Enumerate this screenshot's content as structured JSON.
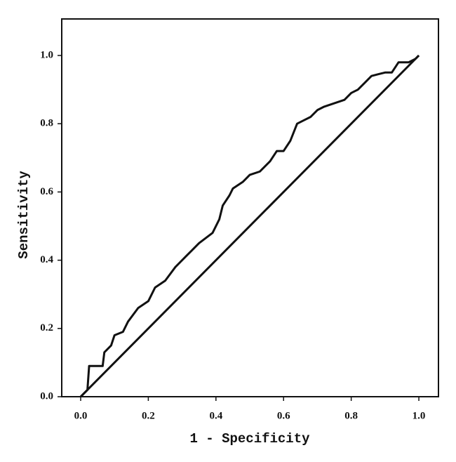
{
  "chart_data": {
    "type": "line",
    "xlabel": "1 - Specificity",
    "ylabel": "Sensitivity",
    "xlim": [
      -0.056,
      1.058
    ],
    "ylim": [
      0,
      1.107
    ],
    "xticks": [
      {
        "value": 0,
        "label": "0.0"
      },
      {
        "value": 0.2,
        "label": "0.2"
      },
      {
        "value": 0.4,
        "label": "0.4"
      },
      {
        "value": 0.6,
        "label": "0.6"
      },
      {
        "value": 0.8,
        "label": "0.8"
      },
      {
        "value": 1,
        "label": "1.0"
      }
    ],
    "yticks": [
      {
        "value": 0,
        "label": "0.0"
      },
      {
        "value": 0.2,
        "label": "0.2"
      },
      {
        "value": 0.4,
        "label": "0.4"
      },
      {
        "value": 0.6,
        "label": "0.6"
      },
      {
        "value": 0.8,
        "label": "0.8"
      },
      {
        "value": 1,
        "label": "1.0"
      }
    ],
    "grid": false,
    "series": [
      {
        "color": "#111111",
        "x": [
          0,
          0.02,
          0.025,
          0.065,
          0.07,
          0.09,
          0.1,
          0.125,
          0.14,
          0.17,
          0.2,
          0.22,
          0.25,
          0.28,
          0.31,
          0.33,
          0.35,
          0.39,
          0.41,
          0.42,
          0.44,
          0.45,
          0.48,
          0.5,
          0.53,
          0.56,
          0.58,
          0.6,
          0.62,
          0.64,
          0.66,
          0.68,
          0.7,
          0.72,
          0.75,
          0.78,
          0.8,
          0.82,
          0.84,
          0.86,
          0.88,
          0.9,
          0.92,
          0.94,
          0.97,
          0.99,
          1
        ],
        "values": [
          0,
          0.02,
          0.09,
          0.09,
          0.13,
          0.15,
          0.18,
          0.19,
          0.22,
          0.26,
          0.28,
          0.32,
          0.34,
          0.38,
          0.41,
          0.43,
          0.45,
          0.48,
          0.52,
          0.56,
          0.59,
          0.61,
          0.63,
          0.65,
          0.66,
          0.69,
          0.72,
          0.72,
          0.75,
          0.8,
          0.81,
          0.82,
          0.84,
          0.85,
          0.86,
          0.87,
          0.89,
          0.9,
          0.92,
          0.94,
          0.945,
          0.95,
          0.95,
          0.98,
          0.98,
          0.99,
          1
        ]
      },
      {
        "color": "#111111",
        "x": [
          0,
          1
        ],
        "values": [
          0,
          1
        ]
      }
    ]
  }
}
